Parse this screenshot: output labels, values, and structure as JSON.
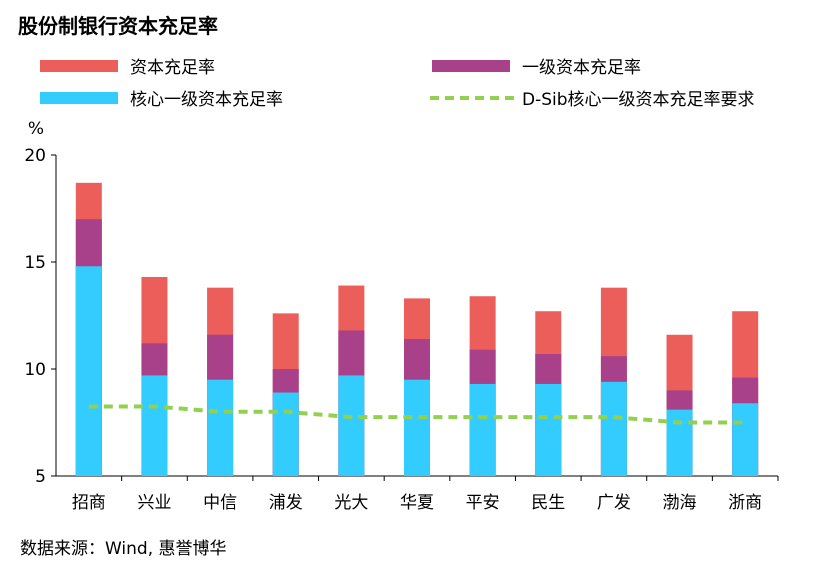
{
  "source": "数据来源：Wind, 惠誉博华",
  "chart_data": {
    "type": "bar",
    "title": "股份制银行资本充足率",
    "ylabel": "%",
    "xlabel": "",
    "ylim": [
      5,
      20
    ],
    "yticks": [
      5,
      10,
      15,
      20
    ],
    "grid": false,
    "legend_position": "top",
    "categories": [
      "招商",
      "兴业",
      "中信",
      "浦发",
      "光大",
      "华夏",
      "平安",
      "民生",
      "广发",
      "渤海",
      "浙商"
    ],
    "series": [
      {
        "name": "资本充足率",
        "type": "bar",
        "color": "#EB5E5A",
        "values": [
          18.7,
          14.3,
          13.8,
          12.6,
          13.9,
          13.3,
          13.4,
          12.7,
          13.8,
          11.6,
          12.7
        ]
      },
      {
        "name": "一级资本充足率",
        "type": "bar",
        "color": "#A9418A",
        "values": [
          17.0,
          11.2,
          11.6,
          10.0,
          11.8,
          11.4,
          10.9,
          10.7,
          10.6,
          9.0,
          9.6
        ]
      },
      {
        "name": "核心一级资本充足率",
        "type": "bar",
        "color": "#33CCFF",
        "values": [
          14.8,
          9.7,
          9.5,
          8.9,
          9.7,
          9.5,
          9.3,
          9.3,
          9.4,
          8.1,
          8.4
        ]
      },
      {
        "name": "D-Sib核心一级资本充足率要求",
        "type": "line",
        "style": "dashed",
        "color": "#92D050",
        "values": [
          8.25,
          8.25,
          8.0,
          8.0,
          7.75,
          7.75,
          7.75,
          7.75,
          7.75,
          7.5,
          7.5
        ]
      }
    ]
  }
}
